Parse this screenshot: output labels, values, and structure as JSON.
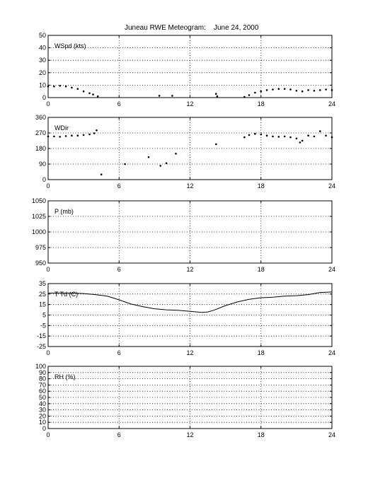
{
  "figure": {
    "title_station": "Juneau RWE Meteogram:",
    "title_date": "June 24, 2000"
  },
  "chart_data": [
    {
      "id": "wspd",
      "type": "scatter",
      "label": "WSpd (kts)",
      "xlim": [
        0,
        24
      ],
      "ylim": [
        0,
        50
      ],
      "xticks": [
        0,
        6,
        12,
        18,
        24
      ],
      "yticks": [
        0,
        10,
        20,
        30,
        40,
        50
      ],
      "grid": true,
      "series": [
        {
          "x": [
            0,
            0.5,
            1,
            1.5,
            2,
            2.5,
            3,
            3.5,
            3.8,
            4.2,
            9.4,
            10.5,
            14.2,
            14.3,
            16.6,
            17,
            17.5,
            18,
            18.5,
            19,
            19.5,
            20,
            20.5,
            21,
            21.5,
            22,
            22.5,
            23,
            23.5,
            24
          ],
          "y": [
            9,
            9,
            9.5,
            9,
            8,
            7,
            5,
            3.5,
            2.5,
            1,
            1.5,
            1.5,
            3,
            1,
            0.5,
            2,
            4,
            5,
            6,
            6.5,
            7,
            7,
            6.5,
            5.5,
            5,
            6,
            5.5,
            6,
            6.5,
            6
          ]
        }
      ]
    },
    {
      "id": "wdir",
      "type": "scatter",
      "label": "WDir",
      "xlim": [
        0,
        24
      ],
      "ylim": [
        0,
        360
      ],
      "xticks": [
        0,
        6,
        12,
        18,
        24
      ],
      "yticks": [
        0,
        90,
        180,
        270,
        360
      ],
      "grid": true,
      "series": [
        {
          "x": [
            0,
            0.5,
            1,
            1.5,
            2,
            2.5,
            3,
            3.5,
            3.9,
            4.1,
            4.5,
            6.5,
            8.5,
            9.5,
            10,
            10.8,
            14.2,
            16.6,
            17,
            17.5,
            18,
            18.5,
            19,
            19.5,
            20,
            20.5,
            21,
            21.3,
            21.5,
            22,
            22.5,
            23,
            23.5,
            24
          ],
          "y": [
            250,
            250,
            248,
            252,
            255,
            255,
            258,
            262,
            268,
            285,
            30,
            90,
            130,
            80,
            95,
            150,
            205,
            245,
            258,
            265,
            262,
            255,
            250,
            248,
            250,
            245,
            238,
            215,
            225,
            255,
            250,
            280,
            255,
            245
          ]
        }
      ]
    },
    {
      "id": "pressure",
      "type": "line",
      "label": "P (mb)",
      "xlim": [
        0,
        24
      ],
      "ylim": [
        950,
        1050
      ],
      "xticks": [
        0,
        6,
        12,
        18,
        24
      ],
      "yticks": [
        950,
        975,
        1000,
        1025,
        1050
      ],
      "grid": true,
      "series": []
    },
    {
      "id": "temp",
      "type": "line",
      "label": "T Td (C)",
      "xlim": [
        0,
        24
      ],
      "ylim": [
        -25,
        35
      ],
      "xticks": [
        0,
        6,
        12,
        18,
        24
      ],
      "yticks": [
        -25,
        -15,
        -5,
        5,
        15,
        25,
        35
      ],
      "grid": true,
      "series": [
        {
          "x": [
            0,
            1,
            2,
            3,
            4,
            5,
            6,
            7,
            8,
            9,
            10,
            11,
            12,
            13,
            13.5,
            14,
            15,
            16,
            17,
            18,
            19,
            20,
            21,
            22,
            23,
            24
          ],
          "y": [
            26,
            26,
            26,
            25.5,
            24.5,
            23,
            19.5,
            15.5,
            13,
            11,
            10,
            9.5,
            8.5,
            7.5,
            8,
            9.5,
            14,
            17.5,
            20,
            21.5,
            22,
            23,
            23.5,
            24.5,
            26.5,
            27
          ]
        }
      ]
    },
    {
      "id": "rh",
      "type": "line",
      "label": "RH (%)",
      "xlim": [
        0,
        24
      ],
      "ylim": [
        0,
        100
      ],
      "xticks": [
        0,
        6,
        12,
        18,
        24
      ],
      "yticks": [
        0,
        10,
        20,
        30,
        40,
        50,
        60,
        70,
        80,
        90,
        100
      ],
      "grid": true,
      "series": []
    }
  ]
}
